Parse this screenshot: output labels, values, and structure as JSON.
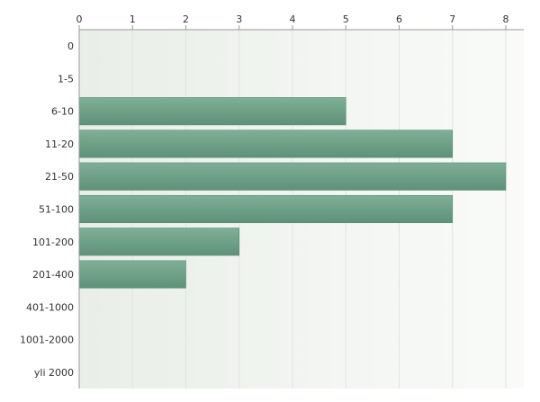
{
  "chart_data": {
    "type": "bar",
    "orientation": "horizontal",
    "title": "",
    "xlabel": "",
    "ylabel": "",
    "categories": [
      "0",
      "1-5",
      "6-10",
      "11-20",
      "21-50",
      "51-100",
      "101-200",
      "201-400",
      "401-1000",
      "1001-2000",
      "yli 2000"
    ],
    "values": [
      0,
      0,
      5,
      7,
      8,
      7,
      3,
      2,
      0,
      0,
      0
    ],
    "xlim": [
      0,
      8
    ],
    "xticks": [
      0,
      1,
      2,
      3,
      4,
      5,
      6,
      7,
      8
    ],
    "x_axis_position": "top",
    "grid": true,
    "legend": "none",
    "bar_color": "#6fa287",
    "bar_color_light": "#7fb097",
    "bar_color_dark": "#5e9177",
    "grid_color": "#dfe5df",
    "plot_bg_left": "#e9eee8",
    "plot_bg_right": "#fafbf9"
  }
}
